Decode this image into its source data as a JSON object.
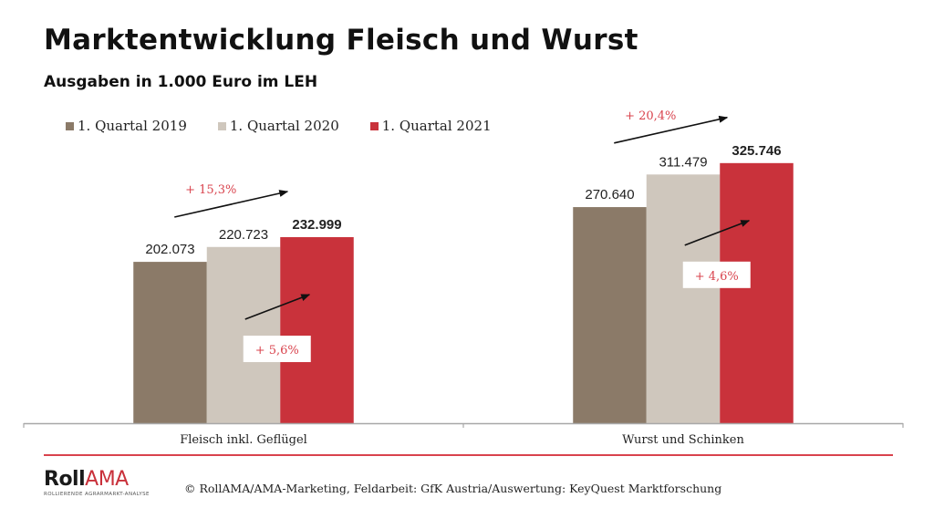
{
  "header": {
    "title": "Marktentwicklung Fleisch und Wurst",
    "subtitle": "Ausgaben in 1.000 Euro im LEH"
  },
  "chart_data": {
    "type": "bar",
    "title": "Marktentwicklung Fleisch und Wurst",
    "subtitle": "Ausgaben in 1.000 Euro im LEH",
    "xlabel": "",
    "ylabel": "",
    "ylim": [
      0,
      530000
    ],
    "grid": false,
    "legend_position": "top-left",
    "categories": [
      "Fleisch inkl. Geflügel",
      "Wurst und Schinken"
    ],
    "series": [
      {
        "name": "1. Quartal 2019",
        "color": "#8b7a68",
        "values": [
          202073,
          270640
        ],
        "labels": [
          "202.073",
          "270.640"
        ],
        "bold": false
      },
      {
        "name": "1. Quartal 2020",
        "color": "#cfc7bd",
        "values": [
          220723,
          311479
        ],
        "labels": [
          "220.723",
          "311.479"
        ],
        "bold": false
      },
      {
        "name": "1. Quartal 2021",
        "color": "#c9323b",
        "values": [
          232999,
          325746
        ],
        "labels": [
          "232.999",
          "325.746"
        ],
        "bold": true
      }
    ],
    "annotations": [
      {
        "category": 0,
        "type": "2019-2021",
        "text": "+ 15,3%"
      },
      {
        "category": 0,
        "type": "2020-2021",
        "text": "+ 5,6%"
      },
      {
        "category": 1,
        "type": "2019-2021",
        "text": "+ 20,4%"
      },
      {
        "category": 1,
        "type": "2020-2021",
        "text": "+ 4,6%"
      }
    ]
  },
  "footer": {
    "logo_main_a": "Roll",
    "logo_main_b": "AMA",
    "logo_sub": "ROLLIERENDE AGRARMARKT-ANALYSE",
    "source": "© RollAMA/AMA-Marketing, Feldarbeit: GfK Austria/Auswertung: KeyQuest Marktforschung"
  },
  "colors": {
    "accent_red": "#c9323b",
    "annotation_red": "#d9434d"
  }
}
